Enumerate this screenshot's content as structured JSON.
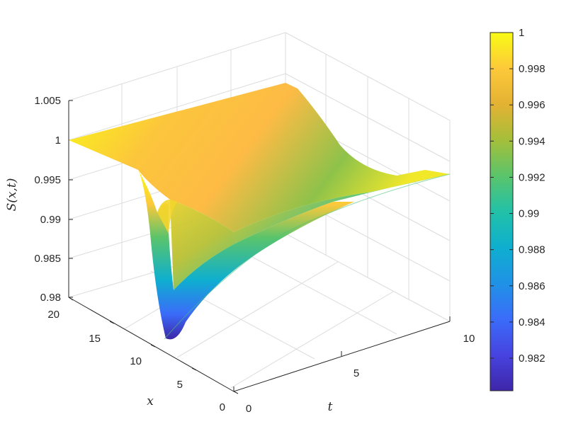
{
  "chart_data": {
    "type": "surface",
    "title": "",
    "xlabel": "t",
    "ylabel": "x",
    "zlabel": "S(x,t)",
    "x_ticks": [
      "0",
      "5",
      "10"
    ],
    "y_ticks": [
      "0",
      "5",
      "10",
      "15",
      "20"
    ],
    "z_ticks": [
      "0.98",
      "0.985",
      "0.99",
      "0.995",
      "1",
      "1.005"
    ],
    "xlim": [
      0,
      10
    ],
    "ylim": [
      0,
      20
    ],
    "zlim": [
      0.98,
      1.005
    ],
    "grid": true,
    "colormap": "parula",
    "colorbar": {
      "range": [
        0.9802,
        1.0
      ],
      "ticks": [
        "0.982",
        "0.984",
        "0.986",
        "0.988",
        "0.99",
        "0.992",
        "0.994",
        "0.996",
        "0.998",
        "1"
      ]
    },
    "surface_profile": {
      "description_values": [
        {
          "t": 0,
          "x": 20,
          "S": 1.0
        },
        {
          "t": 0,
          "x": 0,
          "S": 1.0
        },
        {
          "t": 10,
          "x": 20,
          "S": 1.0
        },
        {
          "t": 10,
          "x": 0,
          "S": 0.9985
        },
        {
          "t": 1.0,
          "x": 12,
          "S": 0.9803
        },
        {
          "t": 0.3,
          "x": 12.5,
          "S": 0.9985
        }
      ]
    }
  }
}
